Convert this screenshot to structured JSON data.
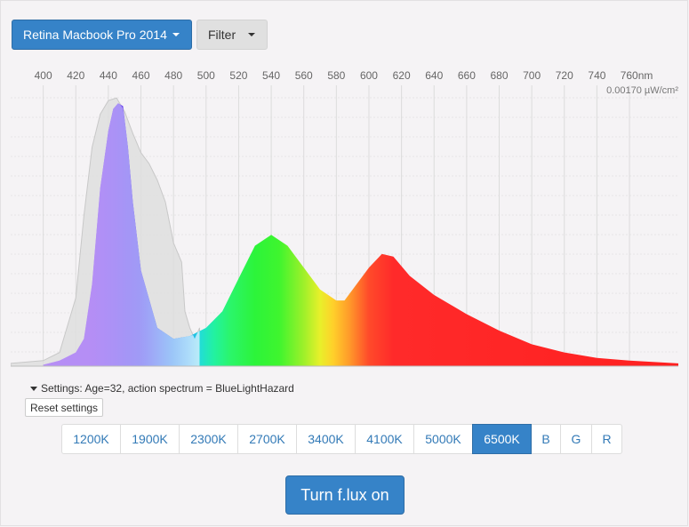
{
  "toolbar": {
    "device_label": "Retina Macbook Pro 2014",
    "filter_label": "Filter"
  },
  "spectrum": {
    "ticks": [
      "400",
      "420",
      "440",
      "460",
      "480",
      "500",
      "520",
      "540",
      "560",
      "580",
      "600",
      "620",
      "640",
      "660",
      "680",
      "700",
      "720",
      "740",
      "760nm"
    ],
    "scale_label": "0.00170 µW/cm²",
    "chart_data": {
      "type": "area",
      "x_range_nm": [
        380,
        790
      ],
      "series": [
        {
          "points": [
            [
              380,
              0.01
            ],
            [
              400,
              0.02
            ],
            [
              410,
              0.05
            ],
            [
              420,
              0.25
            ],
            [
              425,
              0.55
            ],
            [
              430,
              0.8
            ],
            [
              435,
              0.92
            ],
            [
              440,
              0.97
            ],
            [
              445,
              0.98
            ],
            [
              450,
              0.93
            ],
            [
              455,
              0.85
            ],
            [
              460,
              0.78
            ],
            [
              465,
              0.74
            ],
            [
              470,
              0.68
            ],
            [
              475,
              0.6
            ],
            [
              480,
              0.45
            ],
            [
              485,
              0.38
            ],
            [
              487,
              0.2
            ],
            [
              490,
              0.14
            ],
            [
              493,
              0.1
            ],
            [
              496,
              0.14
            ]
          ]
        },
        {
          "points": [
            [
              400,
              0.005
            ],
            [
              410,
              0.02
            ],
            [
              420,
              0.05
            ],
            [
              425,
              0.1
            ],
            [
              430,
              0.3
            ],
            [
              435,
              0.65
            ],
            [
              440,
              0.86
            ],
            [
              443,
              0.94
            ],
            [
              446,
              0.96
            ],
            [
              449,
              0.95
            ],
            [
              452,
              0.8
            ],
            [
              455,
              0.6
            ],
            [
              460,
              0.35
            ],
            [
              470,
              0.14
            ],
            [
              480,
              0.1
            ],
            [
              490,
              0.11
            ],
            [
              500,
              0.14
            ],
            [
              510,
              0.2
            ],
            [
              520,
              0.32
            ],
            [
              530,
              0.44
            ],
            [
              540,
              0.48
            ],
            [
              550,
              0.44
            ],
            [
              560,
              0.36
            ],
            [
              570,
              0.28
            ],
            [
              580,
              0.24
            ],
            [
              585,
              0.24
            ],
            [
              590,
              0.28
            ],
            [
              600,
              0.36
            ],
            [
              608,
              0.41
            ],
            [
              615,
              0.4
            ],
            [
              625,
              0.33
            ],
            [
              640,
              0.26
            ],
            [
              660,
              0.19
            ],
            [
              680,
              0.13
            ],
            [
              700,
              0.08
            ],
            [
              720,
              0.05
            ],
            [
              740,
              0.03
            ],
            [
              760,
              0.02
            ],
            [
              790,
              0.01
            ]
          ]
        }
      ]
    }
  },
  "settings": {
    "summary": "Settings: Age=32, action spectrum = BlueLightHazard",
    "reset_label": "Reset settings"
  },
  "presets": {
    "items": [
      "1200K",
      "1900K",
      "2300K",
      "2700K",
      "3400K",
      "4100K",
      "5000K",
      "6500K",
      "B",
      "G",
      "R"
    ],
    "active": "6500K"
  },
  "action": {
    "flux_label": "Turn f.lux on"
  },
  "colors": {
    "accent": "#3683c8",
    "link": "#337ab7"
  }
}
